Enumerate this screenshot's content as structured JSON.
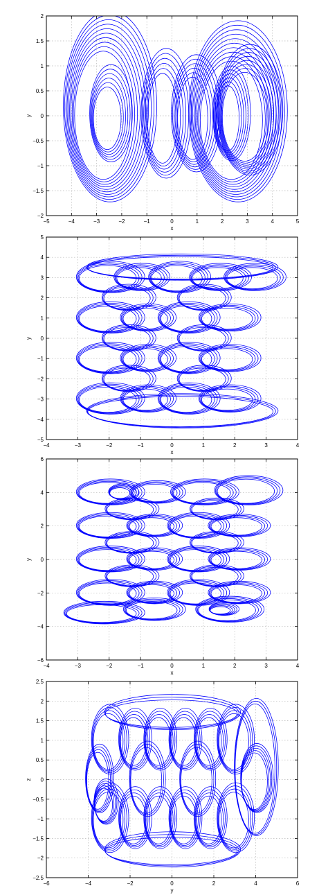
{
  "chart_data": [
    {
      "type": "line",
      "title": "",
      "xlabel": "x",
      "ylabel": "y",
      "xlim": [
        -5,
        5
      ],
      "ylim": [
        -2,
        2
      ],
      "xticks": [
        -5,
        -4,
        -3,
        -2,
        -1,
        0,
        1,
        2,
        3,
        4,
        5
      ],
      "yticks": [
        -2,
        -1.5,
        -1,
        -0.5,
        0,
        0.5,
        1,
        1.5,
        2
      ],
      "grid": true,
      "color": "#0000ff",
      "series": [
        {
          "loops": [
            {
              "cx": -2.6,
              "cy": 0.1,
              "rx": 1.5,
              "ry": 1.6,
              "count": 10,
              "drx": 0.08,
              "dry": 0.07
            },
            {
              "cx": -2.5,
              "cy": 0.0,
              "rx": 0.7,
              "ry": 0.8,
              "count": 6,
              "drx": 0.06,
              "dry": 0.07
            },
            {
              "cx": -0.3,
              "cy": 0.0,
              "rx": 0.8,
              "ry": 1.1,
              "count": 6,
              "drx": 0.08,
              "dry": 0.08
            },
            {
              "cx": 0.9,
              "cy": 0.0,
              "rx": 0.8,
              "ry": 1.0,
              "count": 6,
              "drx": 0.08,
              "dry": 0.07
            },
            {
              "cx": 2.5,
              "cy": 0.0,
              "rx": 1.6,
              "ry": 1.5,
              "count": 10,
              "drx": 0.08,
              "dry": 0.07
            },
            {
              "cx": 3.0,
              "cy": 0.05,
              "rx": 1.1,
              "ry": 1.1,
              "count": 8,
              "drx": 0.06,
              "dry": 0.06
            },
            {
              "cx": 2.3,
              "cy": 0.0,
              "rx": 0.6,
              "ry": 0.8,
              "count": 6,
              "drx": 0.06,
              "dry": 0.06
            }
          ]
        }
      ]
    },
    {
      "type": "line",
      "title": "",
      "xlabel": "x",
      "ylabel": "y",
      "xlim": [
        -4,
        4
      ],
      "ylim": [
        -5,
        5
      ],
      "xticks": [
        -4,
        -3,
        -2,
        -1,
        0,
        1,
        2,
        3,
        4
      ],
      "yticks": [
        -5,
        -4,
        -3,
        -2,
        -1,
        0,
        1,
        2,
        3,
        4,
        5
      ],
      "grid": true,
      "color": "#0000ff",
      "series": [
        {
          "loops": [
            {
              "cx": -2.0,
              "cy": 3.0,
              "rx": 1.0,
              "ry": 0.7,
              "count": 4,
              "drx": 0.06,
              "dry": 0.05
            },
            {
              "cx": -1.0,
              "cy": 3.0,
              "rx": 0.8,
              "ry": 0.6,
              "count": 4,
              "drx": 0.06,
              "dry": 0.05
            },
            {
              "cx": 0.2,
              "cy": 3.0,
              "rx": 0.9,
              "ry": 0.7,
              "count": 4,
              "drx": 0.06,
              "dry": 0.05
            },
            {
              "cx": 1.5,
              "cy": 3.0,
              "rx": 0.9,
              "ry": 0.6,
              "count": 4,
              "drx": 0.06,
              "dry": 0.05
            },
            {
              "cx": 2.6,
              "cy": 3.0,
              "rx": 0.9,
              "ry": 0.6,
              "count": 4,
              "drx": 0.06,
              "dry": 0.05
            },
            {
              "cx": -2.0,
              "cy": 1.0,
              "rx": 1.0,
              "ry": 0.7,
              "count": 4,
              "drx": 0.06,
              "dry": 0.05
            },
            {
              "cx": -0.8,
              "cy": 1.0,
              "rx": 0.8,
              "ry": 0.6,
              "count": 4,
              "drx": 0.06,
              "dry": 0.05
            },
            {
              "cx": 0.5,
              "cy": 1.0,
              "rx": 0.9,
              "ry": 0.7,
              "count": 4,
              "drx": 0.06,
              "dry": 0.05
            },
            {
              "cx": 1.8,
              "cy": 1.0,
              "rx": 0.9,
              "ry": 0.6,
              "count": 4,
              "drx": 0.06,
              "dry": 0.05
            },
            {
              "cx": -2.0,
              "cy": -1.0,
              "rx": 1.0,
              "ry": 0.7,
              "count": 4,
              "drx": 0.06,
              "dry": 0.05
            },
            {
              "cx": -0.8,
              "cy": -1.0,
              "rx": 0.8,
              "ry": 0.6,
              "count": 4,
              "drx": 0.06,
              "dry": 0.05
            },
            {
              "cx": 0.5,
              "cy": -1.0,
              "rx": 0.9,
              "ry": 0.7,
              "count": 4,
              "drx": 0.06,
              "dry": 0.05
            },
            {
              "cx": 1.8,
              "cy": -1.0,
              "rx": 0.9,
              "ry": 0.6,
              "count": 4,
              "drx": 0.06,
              "dry": 0.05
            },
            {
              "cx": -2.0,
              "cy": -3.0,
              "rx": 1.0,
              "ry": 0.7,
              "count": 4,
              "drx": 0.06,
              "dry": 0.05
            },
            {
              "cx": -0.8,
              "cy": -3.0,
              "rx": 0.8,
              "ry": 0.6,
              "count": 4,
              "drx": 0.06,
              "dry": 0.05
            },
            {
              "cx": 0.5,
              "cy": -3.0,
              "rx": 0.9,
              "ry": 0.7,
              "count": 4,
              "drx": 0.06,
              "dry": 0.05
            },
            {
              "cx": 1.8,
              "cy": -3.0,
              "rx": 0.9,
              "ry": 0.6,
              "count": 4,
              "drx": 0.06,
              "dry": 0.05
            },
            {
              "cx": -1.4,
              "cy": 2.0,
              "rx": 0.8,
              "ry": 0.6,
              "count": 3,
              "drx": 0.06,
              "dry": 0.05
            },
            {
              "cx": 1.0,
              "cy": 2.0,
              "rx": 0.8,
              "ry": 0.6,
              "count": 3,
              "drx": 0.06,
              "dry": 0.05
            },
            {
              "cx": -1.4,
              "cy": 0.0,
              "rx": 0.8,
              "ry": 0.6,
              "count": 3,
              "drx": 0.06,
              "dry": 0.05
            },
            {
              "cx": 1.0,
              "cy": 0.0,
              "rx": 0.8,
              "ry": 0.6,
              "count": 3,
              "drx": 0.06,
              "dry": 0.05
            },
            {
              "cx": -1.4,
              "cy": -2.0,
              "rx": 0.8,
              "ry": 0.6,
              "count": 3,
              "drx": 0.06,
              "dry": 0.05
            },
            {
              "cx": 1.0,
              "cy": -2.0,
              "rx": 0.8,
              "ry": 0.6,
              "count": 3,
              "drx": 0.06,
              "dry": 0.05
            },
            {
              "cx": 0.3,
              "cy": 3.5,
              "rx": 3.0,
              "ry": 0.6,
              "count": 3,
              "drx": 0.05,
              "dry": 0.05
            },
            {
              "cx": 0.3,
              "cy": -3.6,
              "rx": 3.0,
              "ry": 0.8,
              "count": 3,
              "drx": 0.05,
              "dry": 0.05
            }
          ]
        }
      ]
    },
    {
      "type": "line",
      "title": "",
      "xlabel": "x",
      "ylabel": "y",
      "xlim": [
        -4,
        4
      ],
      "ylim": [
        -6,
        6
      ],
      "xticks": [
        -4,
        -3,
        -2,
        -1,
        0,
        1,
        2,
        3,
        4
      ],
      "yticks": [
        -6,
        -4,
        -2,
        0,
        2,
        4,
        6
      ],
      "grid": true,
      "color": "#0000ff",
      "series": [
        {
          "loops": [
            {
              "cx": -2.0,
              "cy": 4.0,
              "rx": 1.0,
              "ry": 0.7,
              "count": 4,
              "drx": 0.06,
              "dry": 0.05
            },
            {
              "cx": -1.6,
              "cy": 4.0,
              "rx": 0.4,
              "ry": 0.4,
              "count": 5,
              "drx": 0.04,
              "dry": 0.04
            },
            {
              "cx": -0.5,
              "cy": 4.0,
              "rx": 0.8,
              "ry": 0.6,
              "count": 4,
              "drx": 0.06,
              "dry": 0.05
            },
            {
              "cx": 1.0,
              "cy": 4.0,
              "rx": 1.0,
              "ry": 0.7,
              "count": 4,
              "drx": 0.06,
              "dry": 0.05
            },
            {
              "cx": 2.4,
              "cy": 4.1,
              "rx": 1.0,
              "ry": 0.8,
              "count": 4,
              "drx": 0.06,
              "dry": 0.05
            },
            {
              "cx": -2.0,
              "cy": 2.0,
              "rx": 1.0,
              "ry": 0.7,
              "count": 4,
              "drx": 0.06,
              "dry": 0.05
            },
            {
              "cx": -0.6,
              "cy": 2.0,
              "rx": 0.8,
              "ry": 0.6,
              "count": 4,
              "drx": 0.06,
              "dry": 0.05
            },
            {
              "cx": 0.8,
              "cy": 2.0,
              "rx": 0.9,
              "ry": 0.7,
              "count": 4,
              "drx": 0.06,
              "dry": 0.05
            },
            {
              "cx": 2.1,
              "cy": 2.0,
              "rx": 0.9,
              "ry": 0.6,
              "count": 4,
              "drx": 0.06,
              "dry": 0.05
            },
            {
              "cx": -2.0,
              "cy": 0.0,
              "rx": 1.0,
              "ry": 0.7,
              "count": 4,
              "drx": 0.06,
              "dry": 0.05
            },
            {
              "cx": -0.6,
              "cy": 0.0,
              "rx": 0.8,
              "ry": 0.6,
              "count": 4,
              "drx": 0.06,
              "dry": 0.05
            },
            {
              "cx": 0.8,
              "cy": 0.0,
              "rx": 0.9,
              "ry": 0.7,
              "count": 4,
              "drx": 0.06,
              "dry": 0.05
            },
            {
              "cx": 2.1,
              "cy": 0.0,
              "rx": 0.9,
              "ry": 0.6,
              "count": 4,
              "drx": 0.06,
              "dry": 0.05
            },
            {
              "cx": -2.0,
              "cy": -2.0,
              "rx": 1.0,
              "ry": 0.7,
              "count": 4,
              "drx": 0.06,
              "dry": 0.05
            },
            {
              "cx": -0.6,
              "cy": -2.0,
              "rx": 0.8,
              "ry": 0.6,
              "count": 4,
              "drx": 0.06,
              "dry": 0.05
            },
            {
              "cx": 0.8,
              "cy": -2.0,
              "rx": 0.9,
              "ry": 0.7,
              "count": 4,
              "drx": 0.06,
              "dry": 0.05
            },
            {
              "cx": 2.1,
              "cy": -2.0,
              "rx": 0.9,
              "ry": 0.6,
              "count": 4,
              "drx": 0.06,
              "dry": 0.05
            },
            {
              "cx": -2.2,
              "cy": -3.2,
              "rx": 1.2,
              "ry": 0.6,
              "count": 4,
              "drx": 0.06,
              "dry": 0.05
            },
            {
              "cx": -0.6,
              "cy": -3.0,
              "rx": 0.9,
              "ry": 0.6,
              "count": 4,
              "drx": 0.06,
              "dry": 0.05
            },
            {
              "cx": 1.6,
              "cy": -3.0,
              "rx": 0.4,
              "ry": 0.3,
              "count": 5,
              "drx": 0.04,
              "dry": 0.04
            },
            {
              "cx": 1.8,
              "cy": -3.0,
              "rx": 1.0,
              "ry": 0.7,
              "count": 4,
              "drx": 0.06,
              "dry": 0.05
            },
            {
              "cx": -1.3,
              "cy": 3.0,
              "rx": 0.8,
              "ry": 0.6,
              "count": 3,
              "drx": 0.06,
              "dry": 0.05
            },
            {
              "cx": 1.4,
              "cy": 3.0,
              "rx": 0.8,
              "ry": 0.6,
              "count": 3,
              "drx": 0.06,
              "dry": 0.05
            },
            {
              "cx": -1.3,
              "cy": 1.0,
              "rx": 0.8,
              "ry": 0.6,
              "count": 3,
              "drx": 0.06,
              "dry": 0.05
            },
            {
              "cx": 1.4,
              "cy": 1.0,
              "rx": 0.8,
              "ry": 0.6,
              "count": 3,
              "drx": 0.06,
              "dry": 0.05
            },
            {
              "cx": -1.3,
              "cy": -1.0,
              "rx": 0.8,
              "ry": 0.6,
              "count": 3,
              "drx": 0.06,
              "dry": 0.05
            },
            {
              "cx": 1.4,
              "cy": -1.0,
              "rx": 0.8,
              "ry": 0.6,
              "count": 3,
              "drx": 0.06,
              "dry": 0.05
            }
          ]
        }
      ]
    },
    {
      "type": "line",
      "title": "",
      "xlabel": "y",
      "ylabel": "z",
      "xlim": [
        -6,
        6
      ],
      "ylim": [
        -2.5,
        2.5
      ],
      "xticks": [
        -6,
        -4,
        -2,
        0,
        2,
        4,
        6
      ],
      "yticks": [
        -2.5,
        -2,
        -1.5,
        -1,
        -0.5,
        0,
        0.5,
        1,
        1.5,
        2,
        2.5
      ],
      "grid": true,
      "color": "#0000ff",
      "series": [
        {
          "loops": [
            {
              "cx": -3.0,
              "cy": 1.0,
              "rx": 0.8,
              "ry": 0.8,
              "count": 4,
              "drx": 0.06,
              "dry": 0.06
            },
            {
              "cx": -1.8,
              "cy": 1.0,
              "rx": 0.7,
              "ry": 0.7,
              "count": 4,
              "drx": 0.06,
              "dry": 0.06
            },
            {
              "cx": -0.6,
              "cy": 1.0,
              "rx": 0.7,
              "ry": 0.7,
              "count": 4,
              "drx": 0.06,
              "dry": 0.06
            },
            {
              "cx": 0.6,
              "cy": 1.0,
              "rx": 0.7,
              "ry": 0.7,
              "count": 4,
              "drx": 0.06,
              "dry": 0.06
            },
            {
              "cx": 1.8,
              "cy": 1.0,
              "rx": 0.7,
              "ry": 0.7,
              "count": 4,
              "drx": 0.06,
              "dry": 0.06
            },
            {
              "cx": 3.0,
              "cy": 1.0,
              "rx": 0.8,
              "ry": 0.8,
              "count": 4,
              "drx": 0.06,
              "dry": 0.06
            },
            {
              "cx": -3.0,
              "cy": -1.0,
              "rx": 0.8,
              "ry": 0.8,
              "count": 4,
              "drx": 0.06,
              "dry": 0.06
            },
            {
              "cx": -1.8,
              "cy": -1.0,
              "rx": 0.7,
              "ry": 0.7,
              "count": 4,
              "drx": 0.06,
              "dry": 0.06
            },
            {
              "cx": -0.6,
              "cy": -1.0,
              "rx": 0.7,
              "ry": 0.7,
              "count": 4,
              "drx": 0.06,
              "dry": 0.06
            },
            {
              "cx": 0.6,
              "cy": -1.0,
              "rx": 0.7,
              "ry": 0.7,
              "count": 4,
              "drx": 0.06,
              "dry": 0.06
            },
            {
              "cx": 1.8,
              "cy": -1.0,
              "rx": 0.7,
              "ry": 0.7,
              "count": 4,
              "drx": 0.06,
              "dry": 0.06
            },
            {
              "cx": 3.0,
              "cy": -1.0,
              "rx": 0.8,
              "ry": 0.8,
              "count": 4,
              "drx": 0.06,
              "dry": 0.06
            },
            {
              "cx": -3.2,
              "cy": -0.6,
              "rx": 0.5,
              "ry": 0.5,
              "count": 5,
              "drx": 0.04,
              "dry": 0.04
            },
            {
              "cx": 4.0,
              "cy": 0.0,
              "rx": 0.7,
              "ry": 0.8,
              "count": 5,
              "drx": 0.04,
              "dry": 0.04
            },
            {
              "cx": 4.0,
              "cy": 0.3,
              "rx": 1.0,
              "ry": 1.7,
              "count": 3,
              "drx": 0.05,
              "dry": 0.05
            },
            {
              "cx": -3.5,
              "cy": 0.0,
              "rx": 0.6,
              "ry": 0.8,
              "count": 4,
              "drx": 0.05,
              "dry": 0.05
            },
            {
              "cx": -1.2,
              "cy": 0.0,
              "rx": 0.8,
              "ry": 0.9,
              "count": 3,
              "drx": 0.06,
              "dry": 0.06
            },
            {
              "cx": 1.2,
              "cy": 0.0,
              "rx": 0.8,
              "ry": 0.9,
              "count": 3,
              "drx": 0.06,
              "dry": 0.06
            },
            {
              "cx": 0.0,
              "cy": 1.7,
              "rx": 3.2,
              "ry": 0.4,
              "count": 3,
              "drx": 0.05,
              "dry": 0.05
            },
            {
              "cx": 0.0,
              "cy": -1.8,
              "rx": 3.2,
              "ry": 0.4,
              "count": 3,
              "drx": 0.05,
              "dry": 0.05
            }
          ]
        }
      ]
    }
  ]
}
